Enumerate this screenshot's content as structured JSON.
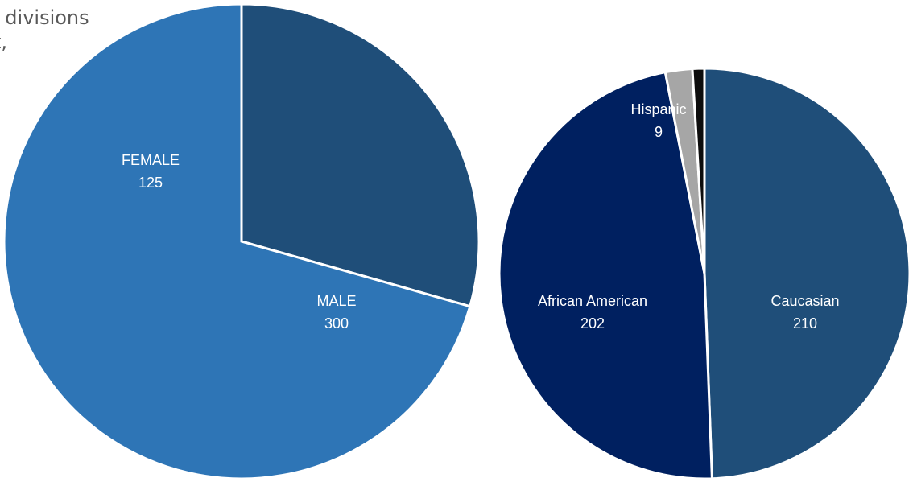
{
  "page_text": [
    "l divisions",
    "t,"
  ],
  "chart_data": [
    {
      "type": "pie",
      "categories": [
        "FEMALE",
        "MALE"
      ],
      "values": [
        125,
        300
      ],
      "colors": [
        "#1f4e79",
        "#2e75b6"
      ]
    },
    {
      "type": "pie",
      "categories": [
        "Caucasian",
        "African American",
        "Hispanic",
        null
      ],
      "values": [
        210,
        202,
        9,
        4
      ],
      "colors": [
        "#1f4e79",
        "#002060",
        "#a6a6a6",
        "#0d0d0d"
      ]
    }
  ]
}
